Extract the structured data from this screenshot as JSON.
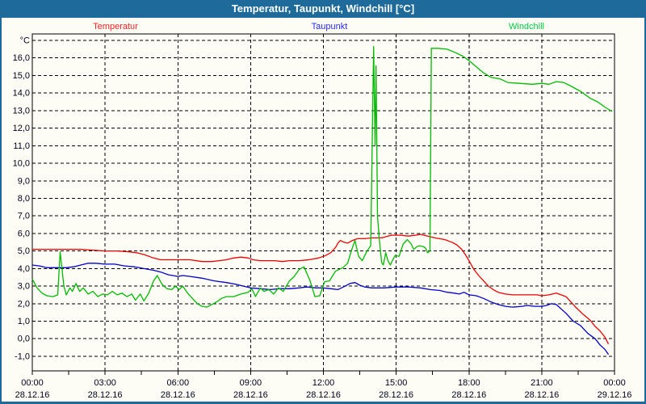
{
  "window": {
    "title": "Temperatur, Taupunkt, Windchill [°C]"
  },
  "legend": {
    "items": [
      {
        "label": "Temperatur",
        "color": "#ff2222"
      },
      {
        "label": "Taupunkt",
        "color": "#2929ee"
      },
      {
        "label": "Windchill",
        "color": "#00cc44"
      }
    ]
  },
  "chart_data": {
    "type": "line",
    "title": "Temperatur, Taupunkt, Windchill [°C]",
    "ylabel": "°C",
    "xlabel": "",
    "grid": true,
    "legend_position": "top",
    "ylim": [
      -1.8,
      17.4
    ],
    "xlim_hours": [
      0,
      24
    ],
    "x_minor_tick_hours": 1.5,
    "y_ticks": [
      {
        "value": 17,
        "label": "°C"
      },
      {
        "value": 16,
        "label": "16,0"
      },
      {
        "value": 15,
        "label": "15,0"
      },
      {
        "value": 14,
        "label": "14,0"
      },
      {
        "value": 13,
        "label": "13,0"
      },
      {
        "value": 12,
        "label": "12,0"
      },
      {
        "value": 11,
        "label": "11,0"
      },
      {
        "value": 10,
        "label": "10,0"
      },
      {
        "value": 9,
        "label": "9,0"
      },
      {
        "value": 8,
        "label": "8,0"
      },
      {
        "value": 7,
        "label": "7,0"
      },
      {
        "value": 6,
        "label": "6,0"
      },
      {
        "value": 5,
        "label": "5,0"
      },
      {
        "value": 4,
        "label": "4,0"
      },
      {
        "value": 3,
        "label": "3,0"
      },
      {
        "value": 2,
        "label": "2,0"
      },
      {
        "value": 1,
        "label": "1,0"
      },
      {
        "value": 0,
        "label": "0,0"
      },
      {
        "value": -1,
        "label": "-1,0"
      }
    ],
    "x_ticks": [
      {
        "hour": 0,
        "time": "00:00",
        "date": "28.12.16"
      },
      {
        "hour": 3,
        "time": "03:00",
        "date": "28.12.16"
      },
      {
        "hour": 6,
        "time": "06:00",
        "date": "28.12.16"
      },
      {
        "hour": 9,
        "time": "09:00",
        "date": "28.12.16"
      },
      {
        "hour": 12,
        "time": "12:00",
        "date": "28.12.16"
      },
      {
        "hour": 15,
        "time": "15:00",
        "date": "28.12.16"
      },
      {
        "hour": 18,
        "time": "18:00",
        "date": "28.12.16"
      },
      {
        "hour": 21,
        "time": "21:00",
        "date": "28.12.16"
      },
      {
        "hour": 24,
        "time": "00:00",
        "date": "29.12.16"
      }
    ],
    "series": [
      {
        "name": "Temperatur",
        "color": "#ee0000",
        "points": [
          [
            0,
            5.1
          ],
          [
            0.5,
            5.1
          ],
          [
            1,
            5.1
          ],
          [
            1.5,
            5.1
          ],
          [
            2,
            5.1
          ],
          [
            2.5,
            5.05
          ],
          [
            3,
            5.0
          ],
          [
            3.5,
            5.0
          ],
          [
            4,
            4.95
          ],
          [
            4.3,
            4.9
          ],
          [
            4.6,
            4.8
          ],
          [
            5,
            4.6
          ],
          [
            5.3,
            4.5
          ],
          [
            6,
            4.5
          ],
          [
            6.5,
            4.5
          ],
          [
            7,
            4.4
          ],
          [
            7.4,
            4.4
          ],
          [
            7.7,
            4.45
          ],
          [
            8,
            4.5
          ],
          [
            8.3,
            4.6
          ],
          [
            8.6,
            4.65
          ],
          [
            8.9,
            4.6
          ],
          [
            9.1,
            4.5
          ],
          [
            9.4,
            4.45
          ],
          [
            10,
            4.45
          ],
          [
            10.3,
            4.4
          ],
          [
            10.6,
            4.45
          ],
          [
            11,
            4.45
          ],
          [
            11.4,
            4.5
          ],
          [
            11.8,
            4.6
          ],
          [
            12.1,
            4.75
          ],
          [
            12.3,
            4.9
          ],
          [
            12.5,
            5.2
          ],
          [
            12.6,
            5.45
          ],
          [
            12.7,
            5.6
          ],
          [
            12.85,
            5.5
          ],
          [
            13,
            5.45
          ],
          [
            13.2,
            5.6
          ],
          [
            13.4,
            5.7
          ],
          [
            13.7,
            5.7
          ],
          [
            14,
            5.75
          ],
          [
            14.4,
            5.75
          ],
          [
            14.8,
            5.9
          ],
          [
            15.2,
            5.9
          ],
          [
            15.5,
            5.85
          ],
          [
            15.8,
            5.9
          ],
          [
            16,
            5.95
          ],
          [
            16.3,
            5.85
          ],
          [
            16.6,
            5.75
          ],
          [
            17,
            5.65
          ],
          [
            17.3,
            5.5
          ],
          [
            17.5,
            5.35
          ],
          [
            17.7,
            5.1
          ],
          [
            17.85,
            4.8
          ],
          [
            18,
            4.45
          ],
          [
            18.2,
            3.95
          ],
          [
            18.4,
            3.6
          ],
          [
            18.6,
            3.3
          ],
          [
            18.8,
            3.0
          ],
          [
            19,
            2.8
          ],
          [
            19.2,
            2.65
          ],
          [
            19.5,
            2.55
          ],
          [
            19.8,
            2.5
          ],
          [
            20.3,
            2.5
          ],
          [
            20.8,
            2.5
          ],
          [
            21,
            2.45
          ],
          [
            21.3,
            2.5
          ],
          [
            21.6,
            2.6
          ],
          [
            21.8,
            2.5
          ],
          [
            22,
            2.4
          ],
          [
            22.2,
            2.1
          ],
          [
            22.4,
            1.8
          ],
          [
            22.7,
            1.4
          ],
          [
            23,
            1.05
          ],
          [
            23.2,
            0.7
          ],
          [
            23.4,
            0.45
          ],
          [
            23.6,
            0.1
          ],
          [
            23.75,
            -0.3
          ]
        ]
      },
      {
        "name": "Taupunkt",
        "color": "#0000cc",
        "points": [
          [
            0,
            4.2
          ],
          [
            0.3,
            4.15
          ],
          [
            0.6,
            4.05
          ],
          [
            1,
            4.05
          ],
          [
            1.4,
            4.05
          ],
          [
            1.7,
            4.1
          ],
          [
            2,
            4.2
          ],
          [
            2.3,
            4.3
          ],
          [
            2.6,
            4.3
          ],
          [
            3,
            4.25
          ],
          [
            3.4,
            4.25
          ],
          [
            3.8,
            4.15
          ],
          [
            4.2,
            4.1
          ],
          [
            4.6,
            4.0
          ],
          [
            5,
            3.9
          ],
          [
            5.3,
            3.8
          ],
          [
            5.6,
            3.65
          ],
          [
            6,
            3.55
          ],
          [
            6.2,
            3.6
          ],
          [
            6.5,
            3.55
          ],
          [
            7,
            3.45
          ],
          [
            7.5,
            3.3
          ],
          [
            8,
            3.2
          ],
          [
            8.4,
            3.1
          ],
          [
            8.7,
            3.0
          ],
          [
            9,
            2.9
          ],
          [
            9.4,
            2.85
          ],
          [
            9.8,
            2.8
          ],
          [
            10.2,
            2.85
          ],
          [
            10.6,
            2.85
          ],
          [
            11,
            2.9
          ],
          [
            11.3,
            2.95
          ],
          [
            11.7,
            2.9
          ],
          [
            12,
            2.9
          ],
          [
            12.3,
            2.85
          ],
          [
            12.6,
            2.8
          ],
          [
            12.9,
            3.0
          ],
          [
            13.1,
            3.15
          ],
          [
            13.3,
            3.2
          ],
          [
            13.5,
            3.05
          ],
          [
            13.7,
            2.95
          ],
          [
            14,
            2.9
          ],
          [
            14.5,
            2.9
          ],
          [
            15,
            2.95
          ],
          [
            15.5,
            2.95
          ],
          [
            16,
            2.9
          ],
          [
            16.4,
            2.8
          ],
          [
            16.8,
            2.75
          ],
          [
            17.1,
            2.65
          ],
          [
            17.4,
            2.6
          ],
          [
            17.6,
            2.55
          ],
          [
            17.8,
            2.65
          ],
          [
            18,
            2.5
          ],
          [
            18.3,
            2.45
          ],
          [
            18.6,
            2.3
          ],
          [
            18.9,
            2.1
          ],
          [
            19.2,
            1.95
          ],
          [
            19.5,
            1.85
          ],
          [
            19.8,
            1.8
          ],
          [
            20.2,
            1.85
          ],
          [
            20.4,
            1.9
          ],
          [
            20.7,
            1.85
          ],
          [
            21,
            1.85
          ],
          [
            21.2,
            1.9
          ],
          [
            21.4,
            2.0
          ],
          [
            21.6,
            1.95
          ],
          [
            21.8,
            1.7
          ],
          [
            22,
            1.45
          ],
          [
            22.3,
            1.0
          ],
          [
            22.6,
            0.75
          ],
          [
            22.9,
            0.3
          ],
          [
            23.2,
            0.0
          ],
          [
            23.4,
            -0.35
          ],
          [
            23.6,
            -0.6
          ],
          [
            23.75,
            -0.9
          ]
        ]
      },
      {
        "name": "Windchill",
        "color": "#00bb00",
        "points": [
          [
            0,
            3.4
          ],
          [
            0.2,
            2.9
          ],
          [
            0.4,
            2.6
          ],
          [
            0.6,
            2.45
          ],
          [
            0.85,
            2.4
          ],
          [
            1.05,
            2.5
          ],
          [
            1.15,
            4.95
          ],
          [
            1.3,
            3.0
          ],
          [
            1.4,
            2.5
          ],
          [
            1.55,
            2.9
          ],
          [
            1.65,
            2.7
          ],
          [
            1.8,
            3.15
          ],
          [
            1.95,
            2.7
          ],
          [
            2.1,
            2.9
          ],
          [
            2.3,
            2.55
          ],
          [
            2.5,
            2.7
          ],
          [
            2.7,
            2.4
          ],
          [
            2.9,
            2.55
          ],
          [
            3.1,
            2.5
          ],
          [
            3.3,
            2.7
          ],
          [
            3.5,
            2.5
          ],
          [
            3.7,
            2.6
          ],
          [
            3.9,
            2.4
          ],
          [
            4.1,
            2.55
          ],
          [
            4.25,
            2.2
          ],
          [
            4.45,
            2.55
          ],
          [
            4.6,
            2.15
          ],
          [
            4.8,
            2.6
          ],
          [
            5,
            3.3
          ],
          [
            5.15,
            3.6
          ],
          [
            5.35,
            3.1
          ],
          [
            5.55,
            2.85
          ],
          [
            5.75,
            2.8
          ],
          [
            5.9,
            3.0
          ],
          [
            6.05,
            2.8
          ],
          [
            6.2,
            3.0
          ],
          [
            6.4,
            2.6
          ],
          [
            6.6,
            2.3
          ],
          [
            6.8,
            2.0
          ],
          [
            7,
            1.85
          ],
          [
            7.2,
            1.8
          ],
          [
            7.4,
            1.95
          ],
          [
            7.6,
            2.1
          ],
          [
            7.8,
            2.3
          ],
          [
            8,
            2.4
          ],
          [
            8.3,
            2.4
          ],
          [
            8.6,
            2.55
          ],
          [
            8.9,
            2.65
          ],
          [
            9.05,
            2.85
          ],
          [
            9.2,
            2.4
          ],
          [
            9.4,
            2.9
          ],
          [
            9.55,
            2.7
          ],
          [
            9.75,
            2.8
          ],
          [
            9.95,
            2.55
          ],
          [
            10.15,
            2.9
          ],
          [
            10.35,
            2.7
          ],
          [
            10.6,
            3.3
          ],
          [
            10.8,
            3.55
          ],
          [
            11,
            3.95
          ],
          [
            11.2,
            4.1
          ],
          [
            11.45,
            3.3
          ],
          [
            11.65,
            2.4
          ],
          [
            11.85,
            2.45
          ],
          [
            12.05,
            3.25
          ],
          [
            12.25,
            3.3
          ],
          [
            12.5,
            3.85
          ],
          [
            12.8,
            4.05
          ],
          [
            13,
            4.3
          ],
          [
            13.15,
            5.0
          ],
          [
            13.3,
            5.6
          ],
          [
            13.45,
            4.7
          ],
          [
            13.6,
            4.45
          ],
          [
            13.8,
            5.0
          ],
          [
            13.95,
            5.3
          ],
          [
            14.07,
            16.65
          ],
          [
            14.13,
            11.0
          ],
          [
            14.17,
            15.55
          ],
          [
            14.23,
            7.0
          ],
          [
            14.3,
            5.75
          ],
          [
            14.4,
            4.35
          ],
          [
            14.47,
            4.2
          ],
          [
            14.57,
            4.9
          ],
          [
            14.66,
            4.45
          ],
          [
            14.76,
            4.2
          ],
          [
            14.86,
            4.5
          ],
          [
            14.96,
            4.75
          ],
          [
            15.12,
            4.7
          ],
          [
            15.29,
            5.4
          ],
          [
            15.46,
            5.65
          ],
          [
            15.62,
            5.4
          ],
          [
            15.72,
            5.1
          ],
          [
            15.86,
            5.25
          ],
          [
            15.96,
            5.3
          ],
          [
            16.12,
            5.25
          ],
          [
            16.22,
            5.15
          ],
          [
            16.29,
            4.9
          ],
          [
            16.39,
            5.0
          ],
          [
            16.45,
            16.55
          ],
          [
            16.7,
            16.55
          ],
          [
            17.1,
            16.5
          ],
          [
            17.45,
            16.3
          ],
          [
            17.75,
            16.1
          ],
          [
            18,
            15.85
          ],
          [
            18.3,
            15.5
          ],
          [
            18.6,
            15.15
          ],
          [
            18.9,
            14.9
          ],
          [
            19.3,
            14.8
          ],
          [
            19.6,
            14.6
          ],
          [
            20.1,
            14.55
          ],
          [
            20.6,
            14.5
          ],
          [
            21,
            14.55
          ],
          [
            21.3,
            14.5
          ],
          [
            21.6,
            14.65
          ],
          [
            21.9,
            14.6
          ],
          [
            22.2,
            14.4
          ],
          [
            22.6,
            14.1
          ],
          [
            23,
            13.7
          ],
          [
            23.3,
            13.5
          ],
          [
            23.6,
            13.2
          ],
          [
            23.9,
            12.95
          ]
        ]
      }
    ]
  }
}
